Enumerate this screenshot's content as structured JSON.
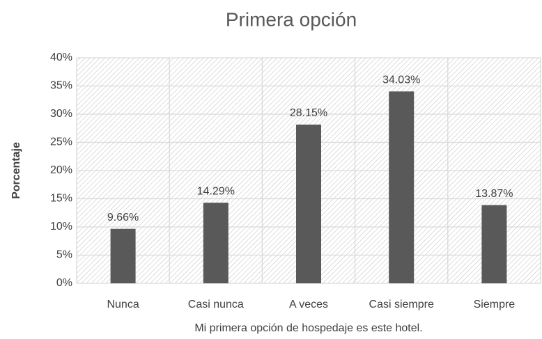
{
  "chart_data": {
    "type": "bar",
    "title": "Primera opción",
    "x_label": "Mi primera opción de hospedaje es este hotel.",
    "y_label": "Porcentaje",
    "categories": [
      "Nunca",
      "Casi nunca",
      "A veces",
      "Casi siempre",
      "Siempre"
    ],
    "values": [
      9.66,
      14.29,
      28.15,
      34.03,
      13.87
    ],
    "value_labels": [
      "9.66%",
      "14.29%",
      "28.15%",
      "34.03%",
      "13.87%"
    ],
    "color": "#595959",
    "ylim": [
      0,
      40
    ],
    "yticks": [
      {
        "value": 0,
        "label": "0%"
      },
      {
        "value": 5,
        "label": "5%"
      },
      {
        "value": 10,
        "label": "10%"
      },
      {
        "value": 15,
        "label": "15%"
      },
      {
        "value": 20,
        "label": "20%"
      },
      {
        "value": 25,
        "label": "25%"
      },
      {
        "value": 30,
        "label": "30%"
      },
      {
        "value": 35,
        "label": "35%"
      },
      {
        "value": 40,
        "label": "40%"
      }
    ],
    "grid": true
  }
}
